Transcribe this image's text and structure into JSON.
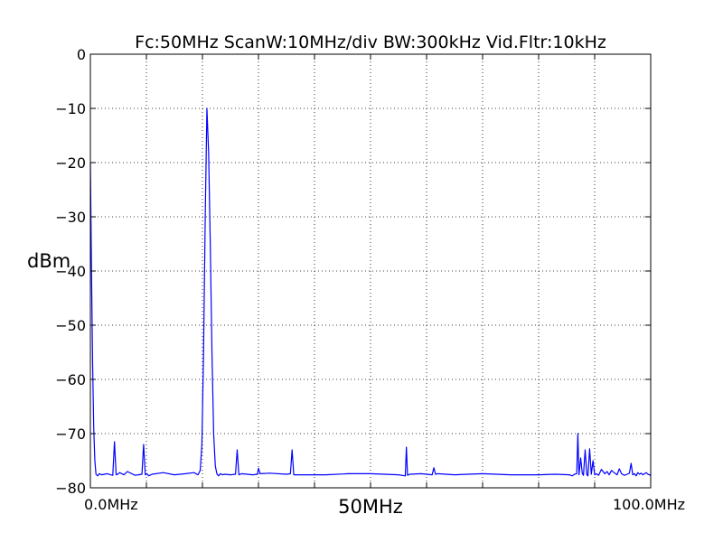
{
  "chart_data": {
    "type": "line",
    "title": "Fc:50MHz  ScanW:10MHz/div  BW:300kHz  Vid.Fltr:10kHz",
    "xlabel": "50MHz",
    "ylabel": "dBm",
    "x_start_label": "0.0MHz",
    "x_end_label": "100.0MHz",
    "xlim": [
      0,
      100
    ],
    "ylim": [
      -80,
      0
    ],
    "yticks": [
      0,
      -10,
      -20,
      -30,
      -40,
      -50,
      -60,
      -70,
      -80
    ],
    "ytick_labels": [
      "0",
      "−10",
      "−20",
      "−30",
      "−40",
      "−50",
      "−60",
      "−70",
      "−80"
    ],
    "x_grid_divisions": 10,
    "grid": true,
    "grid_style": "dotted",
    "line_color": "#0000ff",
    "noise_floor_dbm": -77.5,
    "series": [
      {
        "x": [
          0,
          0.2,
          0.4,
          0.6,
          0.8,
          1.0,
          1.3,
          1.6,
          2,
          3,
          4,
          4.3,
          4.6,
          4.9,
          5.2,
          6,
          6.6,
          8,
          9.2,
          9.5,
          9.8,
          10.1,
          10.4,
          11,
          13,
          15,
          17,
          18.5,
          19.2,
          19.6,
          19.9,
          20.2,
          20.5,
          20.8,
          21.1,
          21.4,
          21.7,
          22,
          22.3,
          22.6,
          22.9,
          23.2,
          23.6,
          24,
          25,
          25.9,
          26.2,
          26.5,
          27,
          29,
          29.8,
          30,
          30.3,
          32,
          35,
          35.7,
          36,
          36.3,
          38,
          42,
          46,
          50,
          55,
          56.2,
          56.4,
          56.6,
          57,
          59,
          61,
          61.3,
          61.6,
          62,
          65,
          70,
          75,
          80,
          83,
          85.5,
          86.0,
          86.4,
          86.8,
          87.0,
          87.2,
          87.5,
          87.8,
          88.0,
          88.3,
          88.6,
          88.8,
          89.1,
          89.4,
          89.7,
          90.0,
          90.3,
          90.7,
          91.2,
          91.8,
          92.2,
          92.6,
          93.0,
          93.6,
          94.0,
          94.4,
          94.8,
          95.3,
          95.8,
          96.2,
          96.5,
          96.8,
          97.1,
          97.4,
          97.7,
          98.0,
          98.3,
          98.6,
          98.9,
          99.2,
          99.5,
          99.8,
          100
        ],
        "y": [
          -20,
          -40,
          -57,
          -69,
          -75,
          -77.5,
          -77.8,
          -77.4,
          -77.6,
          -77.4,
          -77.7,
          -71.5,
          -77.6,
          -77.5,
          -77.2,
          -77.6,
          -77.0,
          -77.7,
          -77.5,
          -72,
          -77.6,
          -77.4,
          -77.8,
          -77.5,
          -77.2,
          -77.6,
          -77.4,
          -77.2,
          -77.6,
          -76.8,
          -72,
          -55,
          -30,
          -10,
          -18,
          -35,
          -55,
          -70,
          -76,
          -77.5,
          -77.8,
          -77.4,
          -77.6,
          -77.5,
          -77.6,
          -77.5,
          -73,
          -77.6,
          -77.4,
          -77.6,
          -77.5,
          -76.4,
          -77.4,
          -77.3,
          -77.5,
          -77.4,
          -73,
          -77.6,
          -77.6,
          -77.6,
          -77.4,
          -77.4,
          -77.6,
          -77.8,
          -72.5,
          -77.7,
          -77.5,
          -77.4,
          -77.6,
          -76.3,
          -77.5,
          -77.4,
          -77.6,
          -77.4,
          -77.6,
          -77.6,
          -77.5,
          -77.6,
          -77.8,
          -77.5,
          -77.4,
          -70,
          -77.6,
          -74.5,
          -77.4,
          -77.7,
          -73,
          -77.6,
          -77.8,
          -72.8,
          -77.5,
          -75,
          -77.6,
          -77.4,
          -77.7,
          -76.6,
          -77.4,
          -77.0,
          -77.6,
          -76.8,
          -77.3,
          -77.6,
          -76.5,
          -77.4,
          -77.7,
          -77.5,
          -77.3,
          -75.5,
          -77.6,
          -77.4,
          -77.8,
          -77.2,
          -77.5,
          -77.3,
          -77.6,
          -77.4,
          -77.2,
          -77.5,
          -77.6,
          -77.8
        ]
      }
    ]
  }
}
